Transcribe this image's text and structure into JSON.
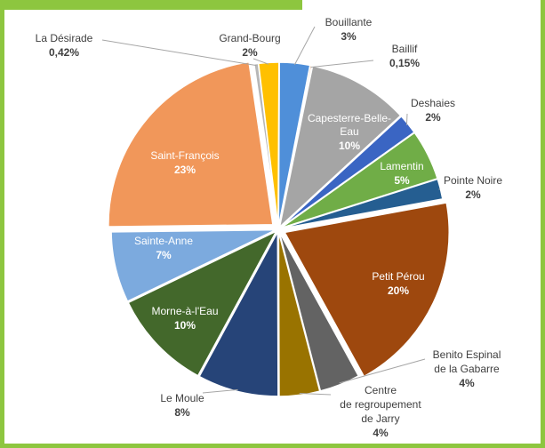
{
  "chart_data": {
    "type": "pie",
    "slices": [
      {
        "label": "Bouillante",
        "value": 3,
        "value_text": "3%",
        "color": "#4f8fd9"
      },
      {
        "label": "Baillif",
        "value": 0.15,
        "value_text": "0,15%",
        "color": "#ed7d31"
      },
      {
        "label": "Capesterre-Belle-Eau",
        "value": 10,
        "value_text": "10%",
        "color": "#a5a5a5"
      },
      {
        "label": "Deshaies",
        "value": 2,
        "value_text": "2%",
        "color": "#3a65c3"
      },
      {
        "label": "Lamentin",
        "value": 5,
        "value_text": "5%",
        "color": "#70ad47"
      },
      {
        "label": "Pointe Noire",
        "value": 2,
        "value_text": "2%",
        "color": "#255e91"
      },
      {
        "label": "Petit Pérou",
        "value": 20,
        "value_text": "20%",
        "color": "#9e480e"
      },
      {
        "label": "Benito Espinal de la Gabarre",
        "value": 4,
        "value_text": "4%",
        "color": "#636363"
      },
      {
        "label": "Centre de regroupement de Jarry",
        "value": 4,
        "value_text": "4%",
        "color": "#997300"
      },
      {
        "label": "Le Moule",
        "value": 8,
        "value_text": "8%",
        "color": "#264478"
      },
      {
        "label": "Morne-à-l'Eau",
        "value": 10,
        "value_text": "10%",
        "color": "#43682b"
      },
      {
        "label": "Sainte-Anne",
        "value": 7,
        "value_text": "7%",
        "color": "#7caade"
      },
      {
        "label": "Saint-François",
        "value": 23,
        "value_text": "23%",
        "color": "#f1975a"
      },
      {
        "label": "La Désirade",
        "value": 0.42,
        "value_text": "0,42%",
        "color": "#b7b7b7"
      },
      {
        "label": "Grand-Bourg",
        "value": 2,
        "value_text": "2%",
        "color": "#ffc000"
      }
    ]
  },
  "colors": {
    "frame": "#8dc63f",
    "slice_border": "#ffffff",
    "leader_line": "#a6a6a6"
  }
}
